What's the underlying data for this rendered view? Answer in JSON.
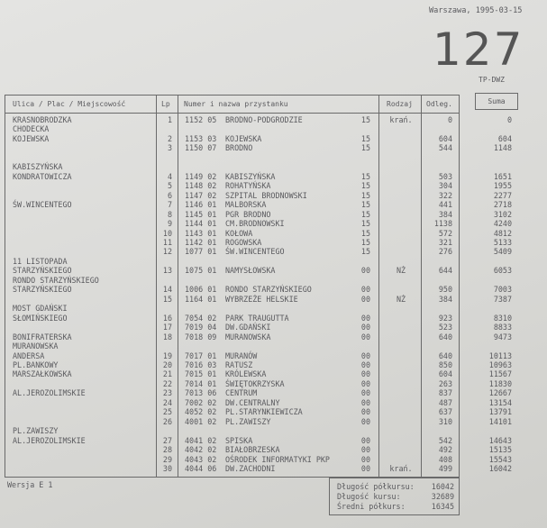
{
  "header": {
    "city_date": "Warszawa, 1995-03-15",
    "route_number": "127",
    "code": "TP-DWZ"
  },
  "columns": {
    "street": "Ulica / Plac / Miejscowość",
    "lp": "Lp",
    "stop": "Numer  i nazwa przystanku",
    "type": "Rodzaj",
    "distance": "Odleg.",
    "sum": "Suma"
  },
  "rows": [
    {
      "street": "KRASNOBRODZKA",
      "lp": "1",
      "number": "1152 05",
      "name": "BRODNO-PODGRODZIE",
      "zone": "15",
      "type": "krań.",
      "distance": "0",
      "sum": "0"
    },
    {
      "street": "CHODECKA"
    },
    {
      "street": "KOJEWSKA",
      "lp": "2",
      "number": "1153 03",
      "name": "KOJEWSKA",
      "zone": "15",
      "distance": "604",
      "sum": "604"
    },
    {
      "lp": "3",
      "number": "1150 07",
      "name": "BRODNO",
      "zone": "15",
      "distance": "544",
      "sum": "1148"
    },
    {},
    {
      "street": "KABISZYŃSKA"
    },
    {
      "street": "KONDRATOWICZA",
      "lp": "4",
      "number": "1149 02",
      "name": "KABISZYŃSKA",
      "zone": "15",
      "distance": "503",
      "sum": "1651"
    },
    {
      "lp": "5",
      "number": "1148 02",
      "name": "ROHATYŃSKA",
      "zone": "15",
      "distance": "304",
      "sum": "1955"
    },
    {
      "lp": "6",
      "number": "1147 02",
      "name": "SZPITAL BRODNOWSKI",
      "zone": "15",
      "distance": "322",
      "sum": "2277"
    },
    {
      "street": "ŚW.WINCENTEGO",
      "lp": "7",
      "number": "1146 01",
      "name": "MALBORSKA",
      "zone": "15",
      "distance": "441",
      "sum": "2718"
    },
    {
      "lp": "8",
      "number": "1145 01",
      "name": "PGR BRODNO",
      "zone": "15",
      "distance": "384",
      "sum": "3102"
    },
    {
      "lp": "9",
      "number": "1144 01",
      "name": "CM.BRODNOWSKI",
      "zone": "15",
      "distance": "1138",
      "sum": "4240"
    },
    {
      "lp": "10",
      "number": "1143 01",
      "name": "KOŁOWA",
      "zone": "15",
      "distance": "572",
      "sum": "4812"
    },
    {
      "lp": "11",
      "number": "1142 01",
      "name": "ROGOWSKA",
      "zone": "15",
      "distance": "321",
      "sum": "5133"
    },
    {
      "lp": "12",
      "number": "1077 01",
      "name": "ŚW.WINCENTEGO",
      "zone": "15",
      "distance": "276",
      "sum": "5409"
    },
    {
      "street": "11 LISTOPADA"
    },
    {
      "street": "STARZYŃSKIEGO",
      "lp": "13",
      "number": "1075 01",
      "name": "NAMYSŁOWSKA",
      "zone": "00",
      "type": "NŻ",
      "distance": "644",
      "sum": "6053"
    },
    {
      "street": "RONDO STARZYŃSKIEGO"
    },
    {
      "street": "STARZYŃSKIEGO",
      "lp": "14",
      "number": "1006 01",
      "name": "RONDO STARZYŃSKIEGO",
      "zone": "00",
      "distance": "950",
      "sum": "7003"
    },
    {
      "lp": "15",
      "number": "1164 01",
      "name": "WYBRZEŻE HELSKIE",
      "zone": "00",
      "type": "NŻ",
      "distance": "384",
      "sum": "7387"
    },
    {
      "street": "MOST GDAŃSKI"
    },
    {
      "street": "SŁOMIŃSKIEGO",
      "lp": "16",
      "number": "7054 02",
      "name": "PARK TRAUGUTTA",
      "zone": "00",
      "distance": "923",
      "sum": "8310"
    },
    {
      "lp": "17",
      "number": "7019 04",
      "name": "DW.GDAŃSKI",
      "zone": "00",
      "distance": "523",
      "sum": "8833"
    },
    {
      "street": "BONIFRATERSKA",
      "lp": "18",
      "number": "7018 09",
      "name": "MURANOWSKA",
      "zone": "00",
      "distance": "640",
      "sum": "9473"
    },
    {
      "street": "MURANOWSKA"
    },
    {
      "street": "ANDERSA",
      "lp": "19",
      "number": "7017 01",
      "name": "MURANÓW",
      "zone": "00",
      "distance": "640",
      "sum": "10113"
    },
    {
      "street": "PL.BANKOWY",
      "lp": "20",
      "number": "7016 03",
      "name": "RATUSZ",
      "zone": "00",
      "distance": "850",
      "sum": "10963"
    },
    {
      "street": "MARSZAŁKOWSKA",
      "lp": "21",
      "number": "7015 01",
      "name": "KRÓLEWSKA",
      "zone": "00",
      "distance": "604",
      "sum": "11567"
    },
    {
      "lp": "22",
      "number": "7014 01",
      "name": "ŚWIĘTOKRZYSKA",
      "zone": "00",
      "distance": "263",
      "sum": "11830"
    },
    {
      "street": "AL.JEROZOLIMSKIE",
      "lp": "23",
      "number": "7013 06",
      "name": "CENTRUM",
      "zone": "00",
      "distance": "837",
      "sum": "12667"
    },
    {
      "lp": "24",
      "number": "7002 02",
      "name": "DW.CENTRALNY",
      "zone": "00",
      "distance": "487",
      "sum": "13154"
    },
    {
      "lp": "25",
      "number": "4052 02",
      "name": "PL.STARYNKIEWICZA",
      "zone": "00",
      "distance": "637",
      "sum": "13791"
    },
    {
      "lp": "26",
      "number": "4001 02",
      "name": "PL.ZAWISZY",
      "zone": "00",
      "distance": "310",
      "sum": "14101"
    },
    {
      "street": "PL.ZAWISZY"
    },
    {
      "street": "AL.JEROZOLIMSKIE",
      "lp": "27",
      "number": "4041 02",
      "name": "SPISKA",
      "zone": "00",
      "distance": "542",
      "sum": "14643"
    },
    {
      "lp": "28",
      "number": "4042 02",
      "name": "BIAŁOBRZESKA",
      "zone": "00",
      "distance": "492",
      "sum": "15135"
    },
    {
      "lp": "29",
      "number": "4043 02",
      "name": "OŚRODEK INFORMATYKI PKP",
      "zone": "00",
      "distance": "408",
      "sum": "15543"
    },
    {
      "lp": "30",
      "number": "4044 06",
      "name": "DW.ZACHODNI",
      "zone": "00",
      "type": "krań.",
      "distance": "499",
      "sum": "16042"
    }
  ],
  "footer": {
    "version": "Wersja  E 1",
    "summary": [
      {
        "label": "Długość półkursu:",
        "value": "16042"
      },
      {
        "label": "Długość kursu:",
        "value": "32689"
      },
      {
        "label": "Średni  półkurs:",
        "value": "16345"
      }
    ]
  }
}
